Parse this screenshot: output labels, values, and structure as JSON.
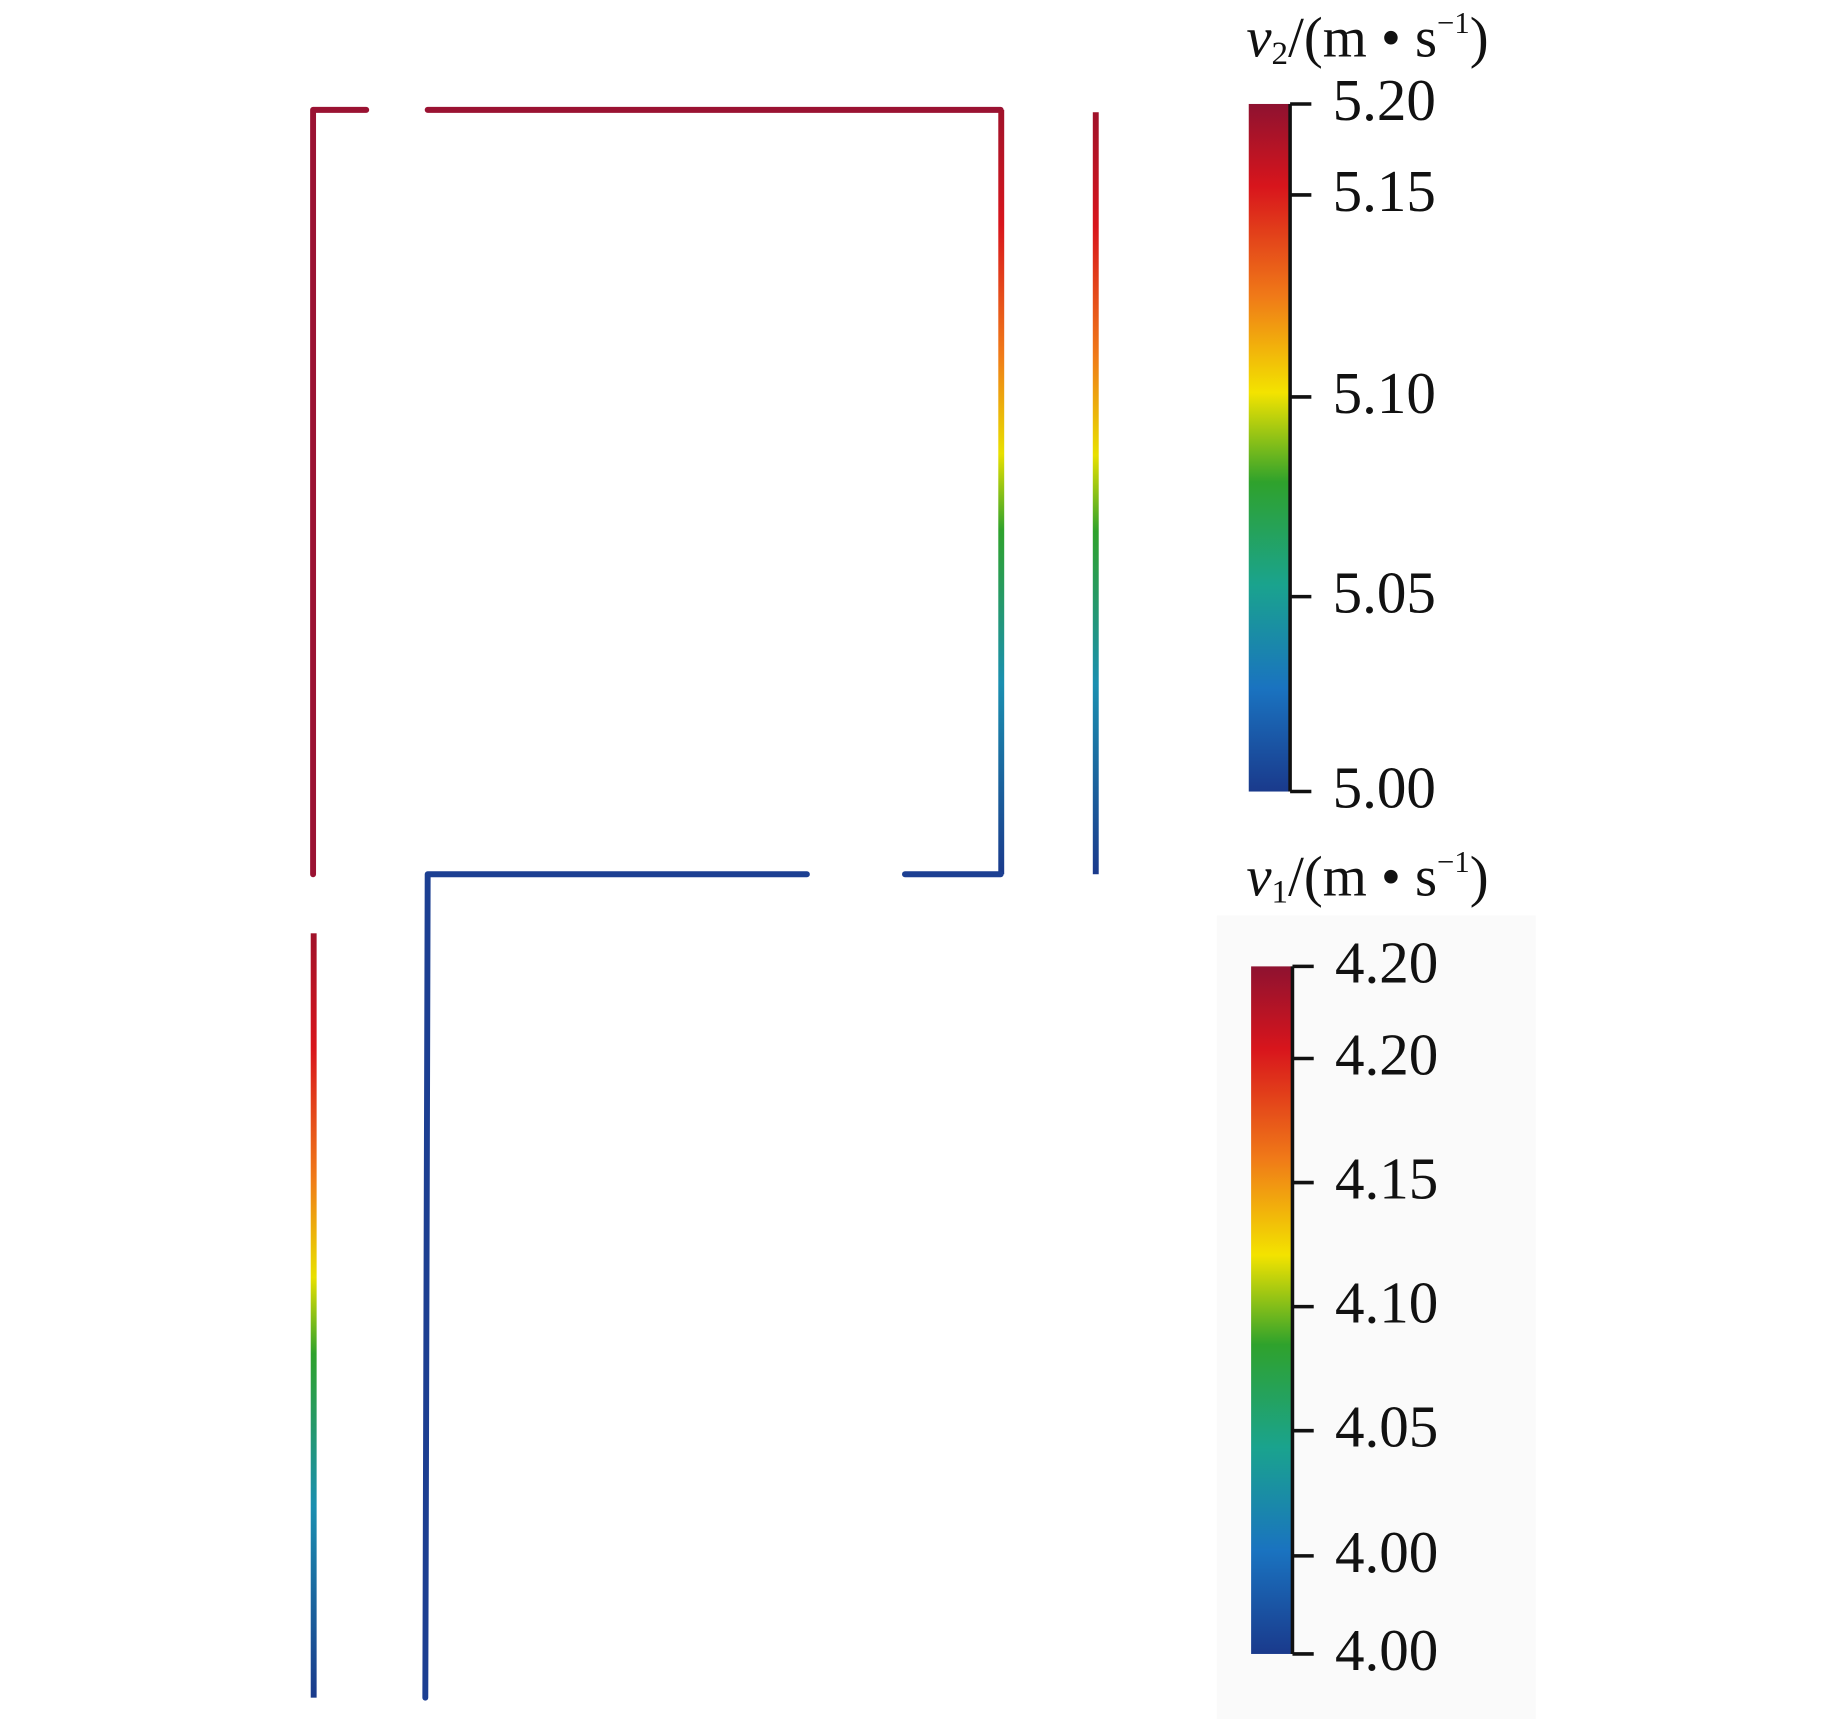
{
  "colorbars": [
    {
      "title": {
        "symbol": "v",
        "subscript": "2",
        "unit": "/(m • s",
        "exponent": "−1",
        "close": ")"
      },
      "ticks": [
        "5.20",
        "5.15",
        "5.10",
        "5.05",
        "5.00"
      ]
    },
    {
      "title": {
        "symbol": "v",
        "subscript": "1",
        "unit": "/(m • s",
        "exponent": "−1",
        "close": ")"
      },
      "ticks": [
        "4.20",
        "4.20",
        "4.15",
        "4.10",
        "4.05",
        "4.00",
        "4.00"
      ]
    }
  ]
}
